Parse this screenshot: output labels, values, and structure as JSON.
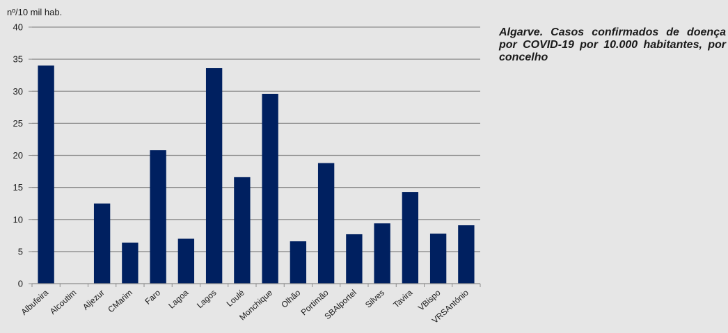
{
  "caption": "Algarve. Casos confirmados de doença por COVID-19 por 10.000 habitantes, por concelho",
  "chart_data": {
    "type": "bar",
    "ylabel": "nº/10 mil hab.",
    "ylim": [
      0,
      40
    ],
    "yticks": [
      0,
      5,
      10,
      15,
      20,
      25,
      30,
      35,
      40
    ],
    "grid": true,
    "bar_color": "#002060",
    "categories": [
      "Albufeira",
      "Alcoutim",
      "Aljezur",
      "CMarim",
      "Faro",
      "Lagoa",
      "Lagos",
      "Loulé",
      "Monchique",
      "Olhão",
      "Portimão",
      "SBAlportel",
      "Silves",
      "Tavira",
      "VBispo",
      "VRSAntónio"
    ],
    "values": [
      34.0,
      0,
      12.5,
      6.4,
      20.8,
      7.0,
      33.6,
      16.6,
      29.6,
      6.6,
      18.8,
      7.7,
      9.4,
      14.3,
      7.8,
      9.1
    ]
  }
}
